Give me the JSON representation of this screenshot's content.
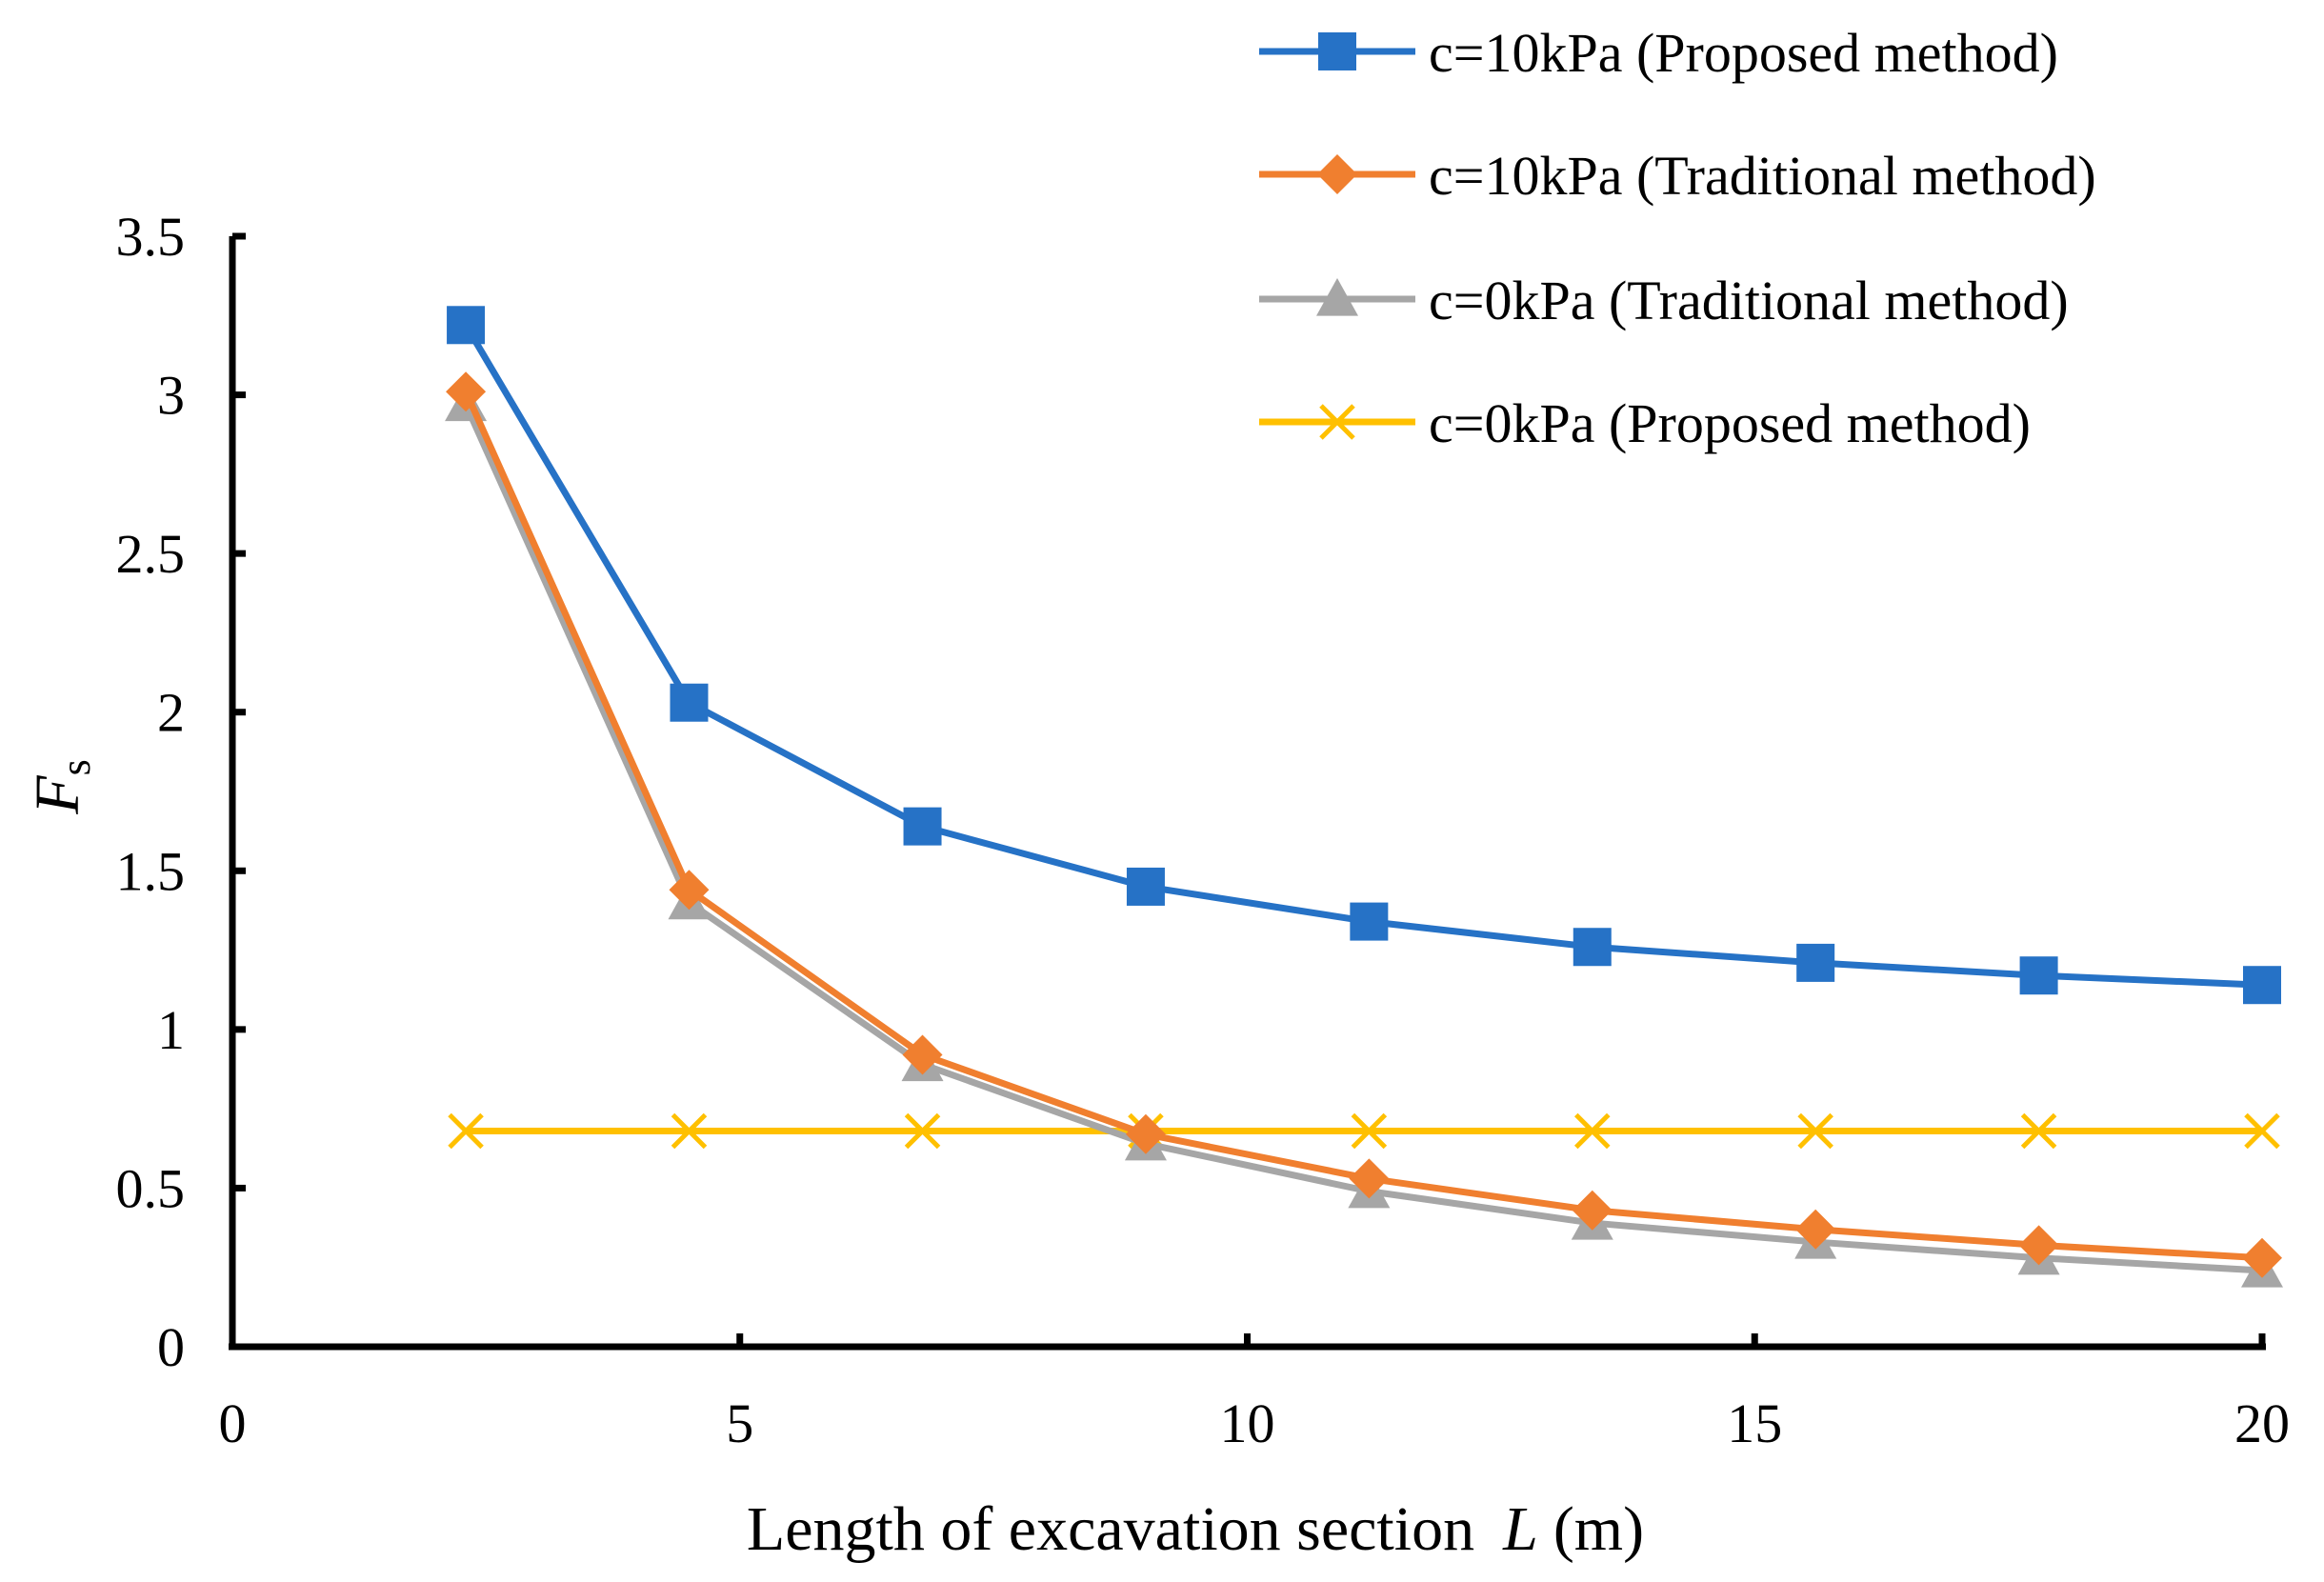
{
  "chart_data": {
    "type": "line",
    "title": "",
    "xlabel": "Length of excavation section",
    "xlabel_var": "L",
    "xlabel_unit": "(m)",
    "ylabel": "F",
    "ylabel_sub": "s",
    "xlim": [
      0,
      20
    ],
    "ylim": [
      0,
      3.5
    ],
    "x_ticks": [
      "0",
      "5",
      "10",
      "15",
      "20"
    ],
    "y_ticks": [
      "0",
      "0.5",
      "1",
      "1.5",
      "2",
      "2.5",
      "3",
      "3.5"
    ],
    "x_tick_values": [
      0,
      5,
      10,
      15,
      20
    ],
    "y_tick_values": [
      0,
      0.5,
      1,
      1.5,
      2,
      2.5,
      3,
      3.5
    ],
    "grid": false,
    "legend_position": "top-right",
    "x": [
      2.3,
      4.5,
      6.8,
      9.0,
      11.2,
      13.4,
      15.6,
      17.8,
      20.0
    ],
    "series": [
      {
        "name": "c=10kPa (Proposed method)",
        "color": "#2672C6",
        "marker": "square",
        "values": [
          3.22,
          2.03,
          1.64,
          1.45,
          1.34,
          1.26,
          1.21,
          1.17,
          1.14
        ]
      },
      {
        "name": "c=10kPa (Traditional method)",
        "color": "#F07F2F",
        "marker": "diamond",
        "values": [
          3.01,
          1.44,
          0.92,
          0.67,
          0.53,
          0.43,
          0.37,
          0.32,
          0.28
        ]
      },
      {
        "name": "c=0kPa (Traditional method)",
        "color": "#A6A6A6",
        "marker": "triangle",
        "values": [
          2.97,
          1.4,
          0.89,
          0.64,
          0.49,
          0.39,
          0.33,
          0.28,
          0.24
        ]
      },
      {
        "name": "c=0kPa (Proposed method)",
        "color": "#FFC000",
        "marker": "x",
        "values": [
          0.68,
          0.68,
          0.68,
          0.68,
          0.68,
          0.68,
          0.68,
          0.68,
          0.68
        ]
      }
    ]
  }
}
